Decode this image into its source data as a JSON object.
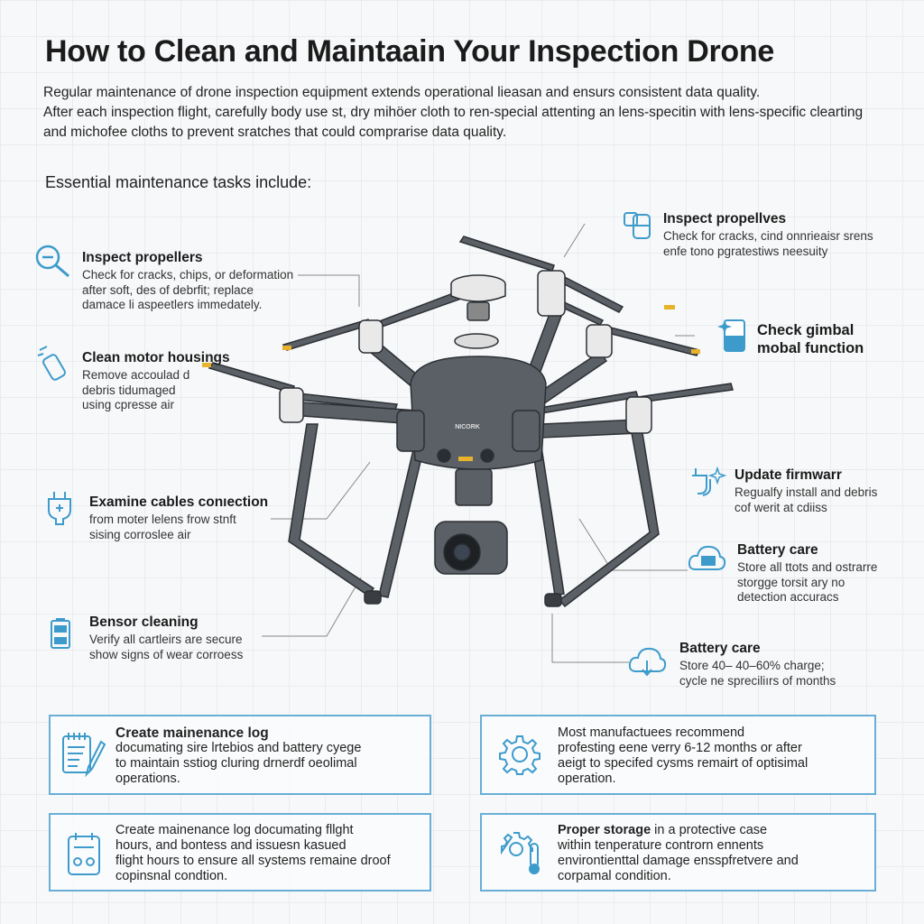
{
  "title": "How to Clean and Maintaain Your Inspection Drone",
  "intro": [
    "Regular maintenance of drone inspection equipment extends operational lieasan and ensurs consistent data quality.",
    "After each inspection flight, carefully body use st, dry mihöer cloth to ren-special attenting an lens-specitin with lens-specific clearting",
    "and michofee cloths to prevent sratches that could comprarise data quality."
  ],
  "subheading": "Essential maintenance tasks include:",
  "drone_label": "NICORK",
  "accent_color": "#3d9bcc",
  "left_callouts": [
    {
      "icon": "magnifier-icon",
      "title": "Inspect propellers",
      "desc": [
        "Check for cracks, chips, or deformation",
        "after soft, des of debrfit; replace",
        "damace li aspeetlers immedately."
      ]
    },
    {
      "icon": "spray-bottle-icon",
      "title": "Clean motor housings",
      "desc": [
        "Remove accoulad d",
        "debris tidumaged",
        "using cpresse air"
      ]
    },
    {
      "icon": "plug-icon",
      "title": "Examine cables conıection",
      "desc": [
        "from moter lelens frow stnft",
        "sising corroslee air"
      ]
    },
    {
      "icon": "battery-icon",
      "title": "Bensor cleaning",
      "desc": [
        "Verify all cartleirs are secure",
        "show signs of wear corroess"
      ]
    }
  ],
  "right_callouts": [
    {
      "icon": "lens-cap-icon",
      "title": "Inspect propellves",
      "desc": [
        "Check for cracks, cind onnrieaisr srens",
        "enfe tono pgratestiws neesuity"
      ]
    },
    {
      "icon": "gimbal-sparkle-icon",
      "title": "Check gimbal mobal function",
      "desc": []
    },
    {
      "icon": "firmware-plug-icon",
      "title": "Update firmwarr",
      "desc": [
        "Regualfy install and debris",
        "cof werit at cdiiss"
      ]
    },
    {
      "icon": "cloud-battery-icon",
      "title": "Battery care",
      "desc": [
        "Store all ttots and ostrarre",
        "storgge torsit ary no",
        "detection accuracs"
      ]
    },
    {
      "icon": "cloud-download-icon",
      "title": "Battery care",
      "desc": [
        "Store 40– 40–60% charge;",
        "cycle ne spreciliırs of months"
      ]
    }
  ],
  "boxes": [
    {
      "icon": "notepad-pencil-icon",
      "title": "Create mainenance log",
      "desc": [
        "documating sire lrtebios and battery cyege",
        "to maintain sstiog cluring drnerdf oeolimal",
        "operations."
      ]
    },
    {
      "icon": "gear-icon",
      "title": "",
      "desc": [
        "Most manufactuees recommend",
        "profesting eene verry 6-12 months or after",
        "aeigt to specifed cysms remairt of optisimal",
        "operation."
      ]
    },
    {
      "icon": "clipboard-icon",
      "title": "",
      "desc": [
        "Create mainenance log documating fllght",
        "hours, and bontess and issuesn kasued",
        "flight hours to ensure all systems remaine droof",
        "copinsnal condtion."
      ]
    },
    {
      "icon": "gear-thermometer-icon",
      "title": "Proper storage",
      "title_suffix": " in a protective case",
      "desc": [
        "within tenperature controrn ennents",
        "environtienttal damage ensspfretvere and",
        "corpamal condition."
      ]
    }
  ]
}
